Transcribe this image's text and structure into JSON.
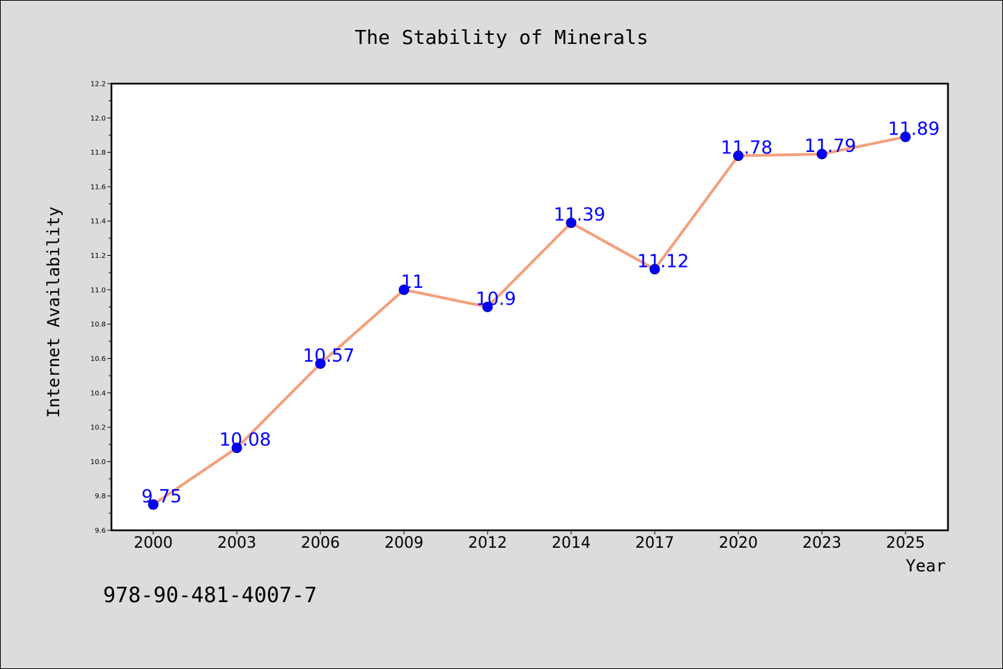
{
  "chart_data": {
    "type": "line",
    "title": "The Stability of Minerals",
    "xlabel": "Year",
    "ylabel": "Internet Availability",
    "categories": [
      "2000",
      "2003",
      "2006",
      "2009",
      "2012",
      "2014",
      "2017",
      "2020",
      "2023",
      "2025"
    ],
    "values": [
      9.75,
      10.08,
      10.57,
      11,
      10.9,
      11.39,
      11.12,
      11.78,
      11.79,
      11.89
    ],
    "data_labels": [
      "9.75",
      "10.08",
      "10.57",
      "11",
      "10.9",
      "11.39",
      "11.12",
      "11.78",
      "11.79",
      "11.89"
    ],
    "ylim": [
      9.6,
      12.2
    ],
    "yticks": [
      "9.6",
      "9.8",
      "10.0",
      "10.2",
      "10.4",
      "10.6",
      "10.8",
      "11.0",
      "11.2",
      "11.4",
      "11.6",
      "11.8",
      "12.0",
      "12.2"
    ],
    "grid": false,
    "colors": {
      "line": "#f4a07c",
      "marker": "#0000ff",
      "data_label": "#0000ff",
      "background": "#dcdcdc",
      "plot_area": "#ffffff"
    }
  },
  "footer": {
    "isbn": "978-90-481-4007-7"
  }
}
